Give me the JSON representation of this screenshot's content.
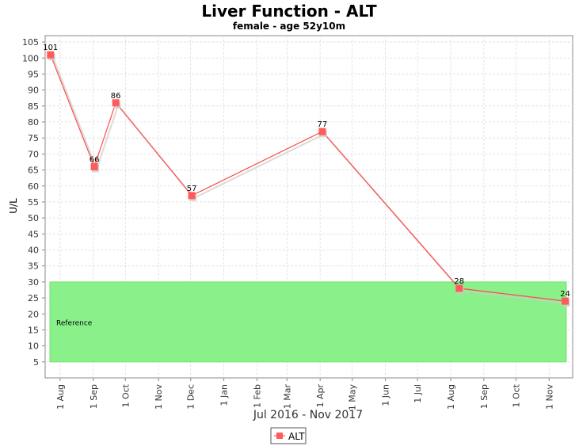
{
  "chart_data": {
    "type": "line",
    "title": "Liver Function - ALT",
    "subtitle": "female - age 52y10m",
    "xlabel": "Jul 2016 - Nov 2017",
    "ylabel": "U/L",
    "xlim": [
      "2016-07-18",
      "2017-11-23"
    ],
    "ylim": [
      0,
      107
    ],
    "yticks": [
      5,
      10,
      15,
      20,
      25,
      30,
      35,
      40,
      45,
      50,
      55,
      60,
      65,
      70,
      75,
      80,
      85,
      90,
      95,
      100,
      105
    ],
    "xticks": [
      {
        "date": "2016-08-01",
        "label": "1 Aug"
      },
      {
        "date": "2016-09-01",
        "label": "1 Sep"
      },
      {
        "date": "2016-10-01",
        "label": "1 Oct"
      },
      {
        "date": "2016-11-01",
        "label": "1 Nov"
      },
      {
        "date": "2016-12-01",
        "label": "1 Dec"
      },
      {
        "date": "2017-01-01",
        "label": "1 Jan"
      },
      {
        "date": "2017-02-01",
        "label": "1 Feb"
      },
      {
        "date": "2017-03-01",
        "label": "1 Mar"
      },
      {
        "date": "2017-04-01",
        "label": "1 Apr"
      },
      {
        "date": "2017-05-01",
        "label": "1 May"
      },
      {
        "date": "2017-06-01",
        "label": "1 Jun"
      },
      {
        "date": "2017-07-01",
        "label": "1 Jul"
      },
      {
        "date": "2017-08-01",
        "label": "1 Aug"
      },
      {
        "date": "2017-09-01",
        "label": "1 Sep"
      },
      {
        "date": "2017-10-01",
        "label": "1 Oct"
      },
      {
        "date": "2017-11-01",
        "label": "1 Nov"
      }
    ],
    "reference_band": {
      "label": "Reference",
      "low": 5,
      "high": 30,
      "color": "#8af08a"
    },
    "grid": true,
    "legend_position": "bottom-center",
    "series": [
      {
        "name": "ALT",
        "color": "#ff4c4c",
        "points": [
          {
            "date": "2016-07-23",
            "value": 101,
            "label": "101"
          },
          {
            "date": "2016-09-02",
            "value": 66,
            "label": "66"
          },
          {
            "date": "2016-09-22",
            "value": 86,
            "label": "86"
          },
          {
            "date": "2016-12-02",
            "value": 57,
            "label": "57"
          },
          {
            "date": "2017-04-03",
            "value": 77,
            "label": "77"
          },
          {
            "date": "2017-08-09",
            "value": 28,
            "label": "28"
          },
          {
            "date": "2017-11-16",
            "value": 24,
            "label": "24"
          }
        ]
      }
    ]
  }
}
